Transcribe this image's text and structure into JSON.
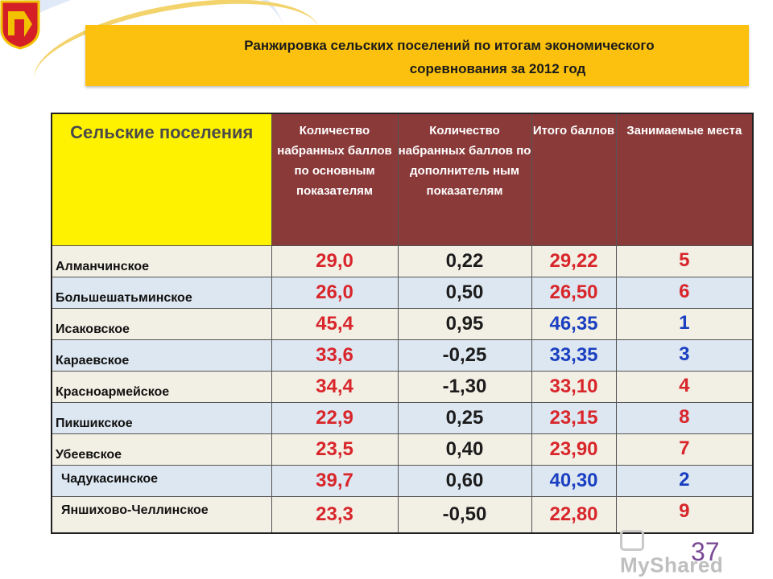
{
  "slide": {
    "title_line1": "Ранжировка  сельских поселений по итогам экономического",
    "title_line2": "соревнования за 2012 год",
    "page_number": "37",
    "watermark": "MyShared"
  },
  "table": {
    "headers": [
      "Сельские поселения",
      "Количество набранных баллов по основным показателям",
      "Количество набранных баллов по дополнитель ным показателям",
      "Итого баллов",
      "Занимаемые места"
    ],
    "rows": [
      {
        "name": "Алманчинское",
        "main": "29,0",
        "extra": "0,22",
        "total": "29,22",
        "place": "5"
      },
      {
        "name": "Большешатьминское",
        "main": "26,0",
        "extra": "0,50",
        "total": "26,50",
        "place": "6"
      },
      {
        "name": "Исаковское",
        "main": "45,4",
        "extra": "0,95",
        "total": "46,35",
        "place": "1"
      },
      {
        "name": "Караевское",
        "main": "33,6",
        "extra": "-0,25",
        "total": "33,35",
        "place": "3"
      },
      {
        "name": "Красноармейское",
        "main": "34,4",
        "extra": "-1,30",
        "total": "33,10",
        "place": "4"
      },
      {
        "name": "Пикшикское",
        "main": "22,9",
        "extra": "0,25",
        "total": "23,15",
        "place": "8"
      },
      {
        "name": "Убеевское",
        "main": "23,5",
        "extra": "0,40",
        "total": "23,90",
        "place": "7"
      },
      {
        "name": "Чадукасинское",
        "main": "39,7",
        "extra": "0,60",
        "total": "40,30",
        "place": "2"
      },
      {
        "name": "Яншихово-Челлинское",
        "main": "23,3",
        "extra": "-0,50",
        "total": "22,80",
        "place": "9"
      }
    ]
  },
  "colors": {
    "header_bg": "#8b3a3a",
    "first_header_bg": "#fff200",
    "title_bg": "#fbc10e",
    "value_red": "#d8262b",
    "value_blue": "#1a3fc1"
  }
}
